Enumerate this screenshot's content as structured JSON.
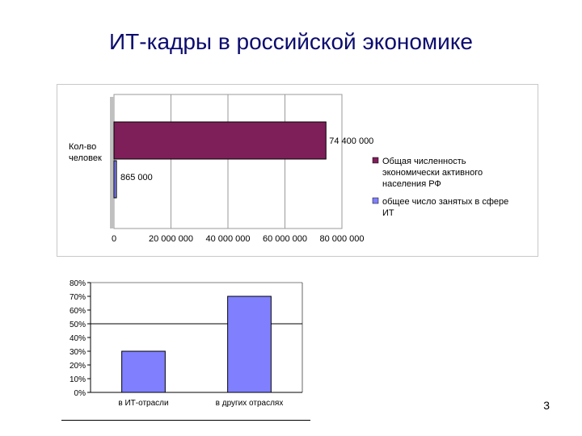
{
  "slide": {
    "title": "ИТ-кадры в российской экономике",
    "page_number": "3"
  },
  "chart_data": [
    {
      "type": "bar",
      "orientation": "horizontal",
      "ylabel": "Кол-во человек",
      "categories": [
        "Кол-во человек"
      ],
      "series": [
        {
          "name": "Общая численность экономически активного населения РФ",
          "values": [
            74400000
          ],
          "value_label": "74 400 000",
          "color": "#7f1f5a"
        },
        {
          "name": "общее число занятых в сфере ИТ",
          "values": [
            865000
          ],
          "value_label": "865 000",
          "color": "#8080ff"
        }
      ],
      "xlim": [
        0,
        80000000
      ],
      "xticks": [
        0,
        20000000,
        40000000,
        60000000,
        80000000
      ],
      "xtick_labels": [
        "0",
        "20 000 000",
        "40 000 000",
        "60 000 000",
        "80 000 000"
      ],
      "grid": true,
      "legend": "right"
    },
    {
      "type": "bar",
      "categories": [
        "в ИТ-отрасли",
        "в других отраслях"
      ],
      "values": [
        30,
        70
      ],
      "ylim": [
        0,
        80
      ],
      "yticks": [
        0,
        10,
        20,
        30,
        40,
        50,
        60,
        70,
        80
      ],
      "ytick_labels": [
        "0%",
        "10%",
        "20%",
        "30%",
        "40%",
        "50%",
        "60%",
        "70%",
        "80%"
      ],
      "reference_line": 50,
      "bar_color": "#8080ff"
    }
  ]
}
